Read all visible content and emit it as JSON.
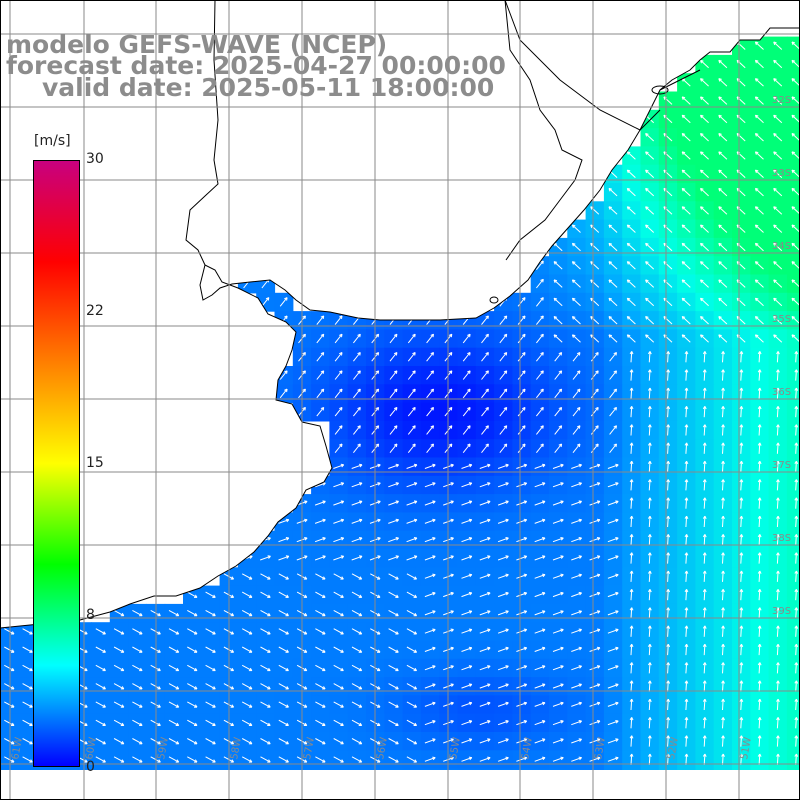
{
  "title": {
    "line1": "modelo GEFS-WAVE (NCEP)",
    "line2": "forecast date: 2025-04-27 00:00:00",
    "line3": "valid date: 2025-05-11 18:00:00"
  },
  "colorbar": {
    "unit": "[m/s]",
    "ticks": [
      "30",
      "22",
      "15",
      "8",
      "0"
    ],
    "min": 0,
    "max": 30,
    "colors": [
      "#0000ff",
      "#00ffff",
      "#00ff00",
      "#ffff00",
      "#ff7f00",
      "#ff0000",
      "#c8007f"
    ]
  },
  "map": {
    "longitude_labels": [
      "61W",
      "60W",
      "59W",
      "58W",
      "57W",
      "56W",
      "55W",
      "54W",
      "53W",
      "52W",
      "51W",
      "50W"
    ],
    "latitude_labels": [
      "32S",
      "33S",
      "34S",
      "35S",
      "36S",
      "37S",
      "38S",
      "39S"
    ],
    "land_color": "#ffffff",
    "grid_color": "#8a8a8a"
  }
}
